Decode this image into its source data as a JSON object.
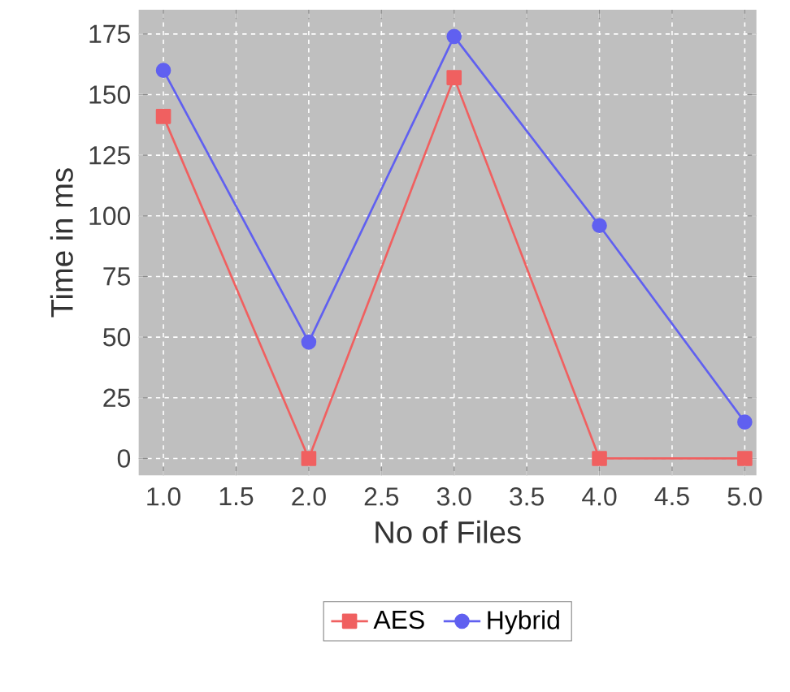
{
  "chart_data": {
    "type": "line",
    "xlabel": "No of Files",
    "ylabel": "Time in ms",
    "x": [
      1,
      2,
      3,
      4,
      5
    ],
    "series": [
      {
        "name": "AES",
        "color": "#f06060",
        "marker": "square",
        "values": [
          141,
          0,
          157,
          0,
          0
        ]
      },
      {
        "name": "Hybrid",
        "color": "#6060f0",
        "marker": "circle",
        "values": [
          160,
          48,
          174,
          96,
          15
        ]
      }
    ],
    "xlim": [
      0.83,
      5.08
    ],
    "ylim": [
      -7,
      185
    ],
    "xticks": [
      {
        "value": 1,
        "label": "1.0"
      },
      {
        "value": 1.5,
        "label": "1.5"
      },
      {
        "value": 2,
        "label": "2.0"
      },
      {
        "value": 2.5,
        "label": "2.5"
      },
      {
        "value": 3,
        "label": "3.0"
      },
      {
        "value": 3.5,
        "label": "3.5"
      },
      {
        "value": 4,
        "label": "4.0"
      },
      {
        "value": 4.5,
        "label": "4.5"
      },
      {
        "value": 5,
        "label": "5.0"
      }
    ],
    "yticks": [
      0,
      25,
      50,
      75,
      100,
      125,
      150,
      175
    ],
    "grid": true,
    "legend": "bottom",
    "line_style": "solid"
  }
}
